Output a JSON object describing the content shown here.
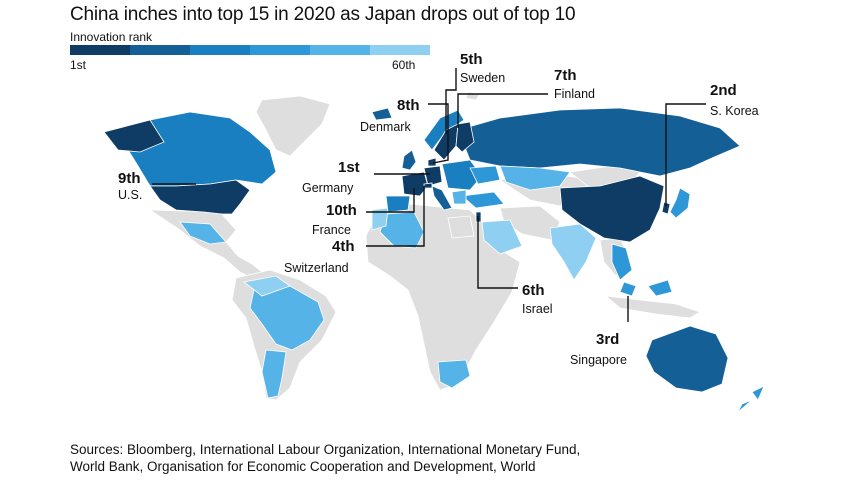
{
  "title": "China inches into top 15 in 2020 as Japan drops out of top 10",
  "legend": {
    "label": "Innovation rank",
    "min_label": "1st",
    "max_label": "60th",
    "colors": [
      "#0e3c64",
      "#135f96",
      "#1a7fc0",
      "#2d97d8",
      "#55b3e8",
      "#8fd0f2"
    ]
  },
  "callouts": [
    {
      "rank": "5th",
      "country": "Sweden"
    },
    {
      "rank": "7th",
      "country": "Finland"
    },
    {
      "rank": "8th",
      "country": "Denmark"
    },
    {
      "rank": "2nd",
      "country": "S. Korea"
    },
    {
      "rank": "1st",
      "country": "Germany"
    },
    {
      "rank": "9th",
      "country": "U.S."
    },
    {
      "rank": "10th",
      "country": "France"
    },
    {
      "rank": "4th",
      "country": "Switzerland"
    },
    {
      "rank": "6th",
      "country": "Israel"
    },
    {
      "rank": "3rd",
      "country": "Singapore"
    }
  ],
  "sources": [
    "Sources: Bloomberg, International Labour Organization, International Monetary Fund,",
    "World Bank, Organisation for Economic Cooperation and Development, World"
  ],
  "colors": {
    "no_data": "#dedede",
    "top_rank": "#0e3c64",
    "high_rank": "#135f96",
    "mid_rank": "#2d97d8",
    "low_rank": "#55b3e8",
    "lowest_rank": "#8fd0f2",
    "leader_line": "#111111"
  }
}
